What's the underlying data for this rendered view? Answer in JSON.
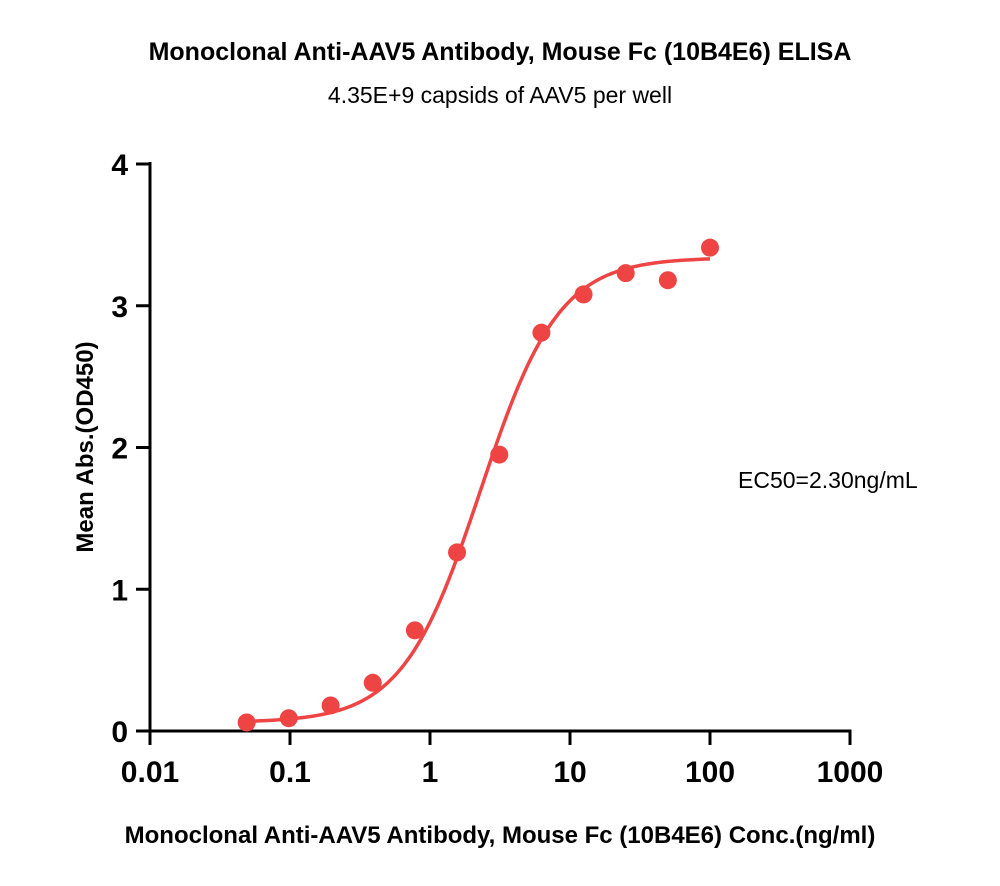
{
  "chart_data": {
    "type": "scatter",
    "title": "Monoclonal Anti-AAV5 Antibody, Mouse Fc (10B4E6) ELISA",
    "subtitle": "4.35E+9 capsids of AAV5 per well",
    "xlabel": "Monoclonal Anti-AAV5 Antibody, Mouse Fc (10B4E6) Conc.(ng/ml)",
    "ylabel": "Mean Abs.(OD450)",
    "x_scale": "log",
    "xlim": [
      0.01,
      1000
    ],
    "ylim": [
      0,
      4
    ],
    "x_ticks": [
      0.01,
      0.1,
      1,
      10,
      100,
      1000
    ],
    "x_tick_labels": [
      "0.01",
      "0.1",
      "1",
      "10",
      "100",
      "1000"
    ],
    "y_ticks": [
      0,
      1,
      2,
      3,
      4
    ],
    "y_tick_labels": [
      "0",
      "1",
      "2",
      "3",
      "4"
    ],
    "grid": false,
    "annotation": "EC50=2.30ng/mL",
    "series": [
      {
        "type": "scatter",
        "color": "#ef4444",
        "points": [
          {
            "x": 0.049,
            "y": 0.06
          },
          {
            "x": 0.098,
            "y": 0.09
          },
          {
            "x": 0.195,
            "y": 0.18
          },
          {
            "x": 0.39,
            "y": 0.34
          },
          {
            "x": 0.78,
            "y": 0.71
          },
          {
            "x": 1.56,
            "y": 1.26
          },
          {
            "x": 3.125,
            "y": 1.95
          },
          {
            "x": 6.25,
            "y": 2.81
          },
          {
            "x": 12.5,
            "y": 3.08
          },
          {
            "x": 25,
            "y": 3.23
          },
          {
            "x": 50,
            "y": 3.18
          },
          {
            "x": 100,
            "y": 3.41
          }
        ]
      },
      {
        "type": "line",
        "color": "#ef4444",
        "fit": "4PL",
        "ec50": 2.3,
        "bottom": 0.06,
        "top": 3.34,
        "hill": 1.55,
        "x_range": [
          0.049,
          100
        ]
      }
    ]
  }
}
